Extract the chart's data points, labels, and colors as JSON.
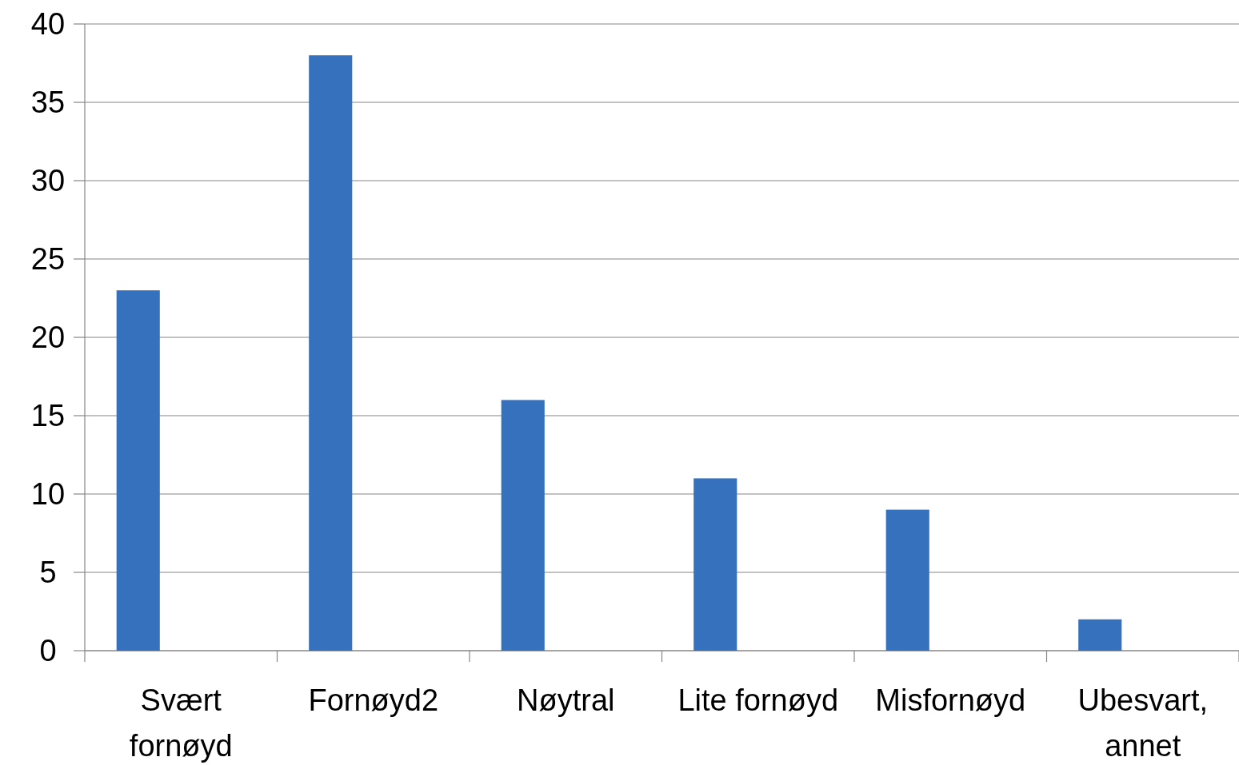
{
  "chart_data": {
    "type": "bar",
    "categories": [
      "Svært fornøyd",
      "Fornøyd2",
      "Nøytral",
      "Lite fornøyd",
      "Misfornøyd",
      "Ubesvart, annet"
    ],
    "values": [
      23,
      38,
      16,
      11,
      9,
      2
    ],
    "color": "#3571bd",
    "ylim": [
      0,
      40
    ],
    "yticks": [
      0,
      5,
      10,
      15,
      20,
      25,
      30,
      35,
      40
    ],
    "grid": "y"
  }
}
